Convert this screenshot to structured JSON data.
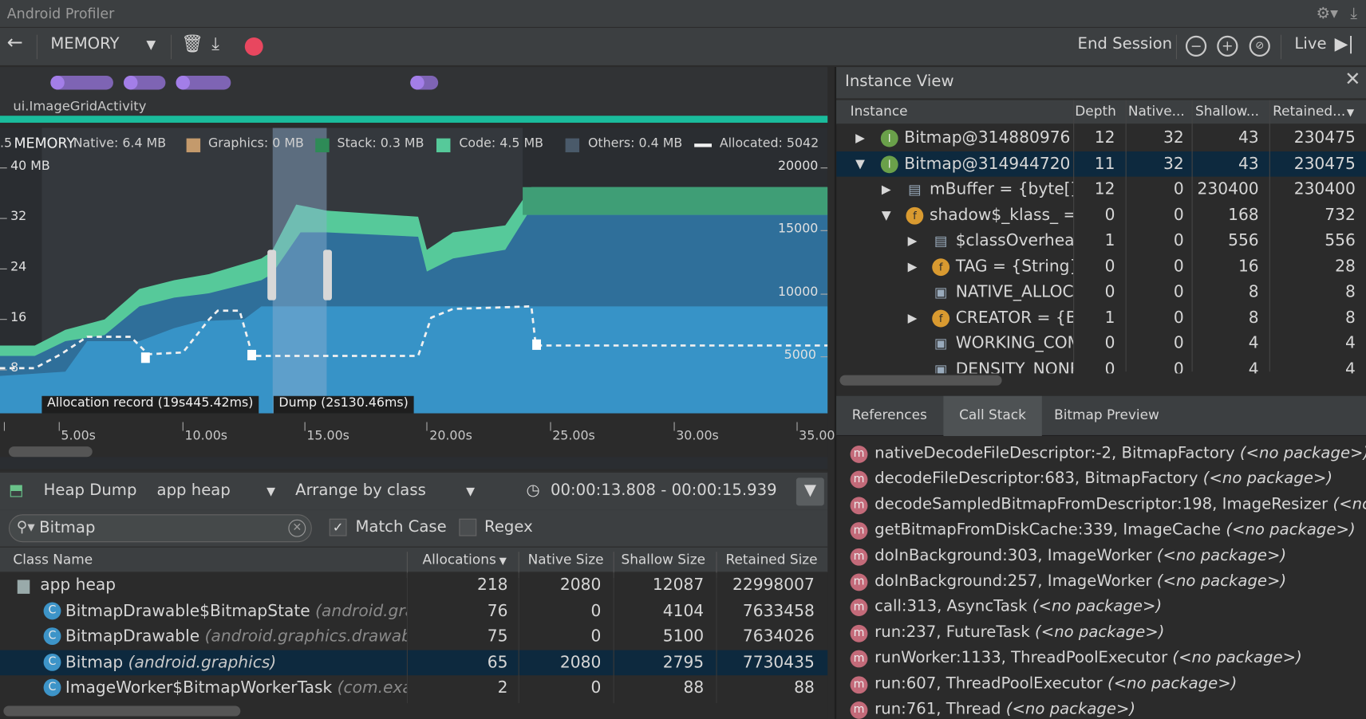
{
  "app_title": "Android Profiler",
  "toolbar": {
    "profiler_select": "MEMORY",
    "end_session": "End Session",
    "live_label": "Live"
  },
  "timeline": {
    "activity": "ui.ImageGridActivity"
  },
  "chart": {
    "overlay_label": "MEMORY",
    "legend": [
      {
        "name": "Native: 6.4 MB",
        "color": "#3a7fb0"
      },
      {
        "name": "Graphics: 0 MB",
        "color": "#c49a6c"
      },
      {
        "name": "Stack: 0.3 MB",
        "color": "#2e8b57"
      },
      {
        "name": "Code: 4.5 MB",
        "color": "#56c99a"
      },
      {
        "name": "Others: 0.4 MB",
        "color": "#4a5a6a"
      },
      {
        "name": "Allocated: 5042",
        "color": "#ffffff"
      }
    ],
    "left_axis": [
      "40 MB",
      "32",
      "24",
      "16",
      "8"
    ],
    "left_axis_partial": ".5",
    "right_axis": [
      "20000",
      "15000",
      "10000",
      "5000"
    ],
    "x_ticks": [
      "5.00s",
      "10.00s",
      "15.00s",
      "20.00s",
      "25.00s",
      "30.00s",
      "35.00"
    ],
    "allocation_record": "Allocation record (19s445.42ms)",
    "dump_label": "Dump (2s130.46ms)"
  },
  "heap": {
    "title": "Heap Dump",
    "heap_select": "app heap",
    "arrange_select": "Arrange by class",
    "time_range": "00:00:13.808 - 00:00:15.939",
    "search_value": "Bitmap",
    "match_case": "Match Case",
    "regex": "Regex",
    "columns": [
      "Class Name",
      "Allocations",
      "Native Size",
      "Shallow Size",
      "Retained Size"
    ],
    "rows": [
      {
        "name": "app heap",
        "pkg": "",
        "alloc": "218",
        "native": "2080",
        "shallow": "12087",
        "retained": "22998007"
      },
      {
        "name": "BitmapDrawable$BitmapState",
        "pkg": "(android.grap",
        "alloc": "76",
        "native": "0",
        "shallow": "4104",
        "retained": "7633458"
      },
      {
        "name": "BitmapDrawable",
        "pkg": "(android.graphics.drawable",
        "alloc": "75",
        "native": "0",
        "shallow": "5100",
        "retained": "7634026"
      },
      {
        "name": "Bitmap",
        "pkg": "(android.graphics)",
        "alloc": "65",
        "native": "2080",
        "shallow": "2795",
        "retained": "7730435"
      },
      {
        "name": "ImageWorker$BitmapWorkerTask",
        "pkg": "(com.exa",
        "alloc": "2",
        "native": "0",
        "shallow": "88",
        "retained": "88"
      }
    ]
  },
  "instance_view": {
    "title": "Instance View",
    "columns": [
      "Instance",
      "Depth",
      "Native...",
      "Shallow...",
      "Retained..."
    ],
    "rows": [
      {
        "name": "Bitmap@314880976 (",
        "depth": "12",
        "native": "32",
        "shallow": "43",
        "retained": "230475"
      },
      {
        "name": "Bitmap@314944720 (",
        "depth": "11",
        "native": "32",
        "shallow": "43",
        "retained": "230475"
      },
      {
        "name": "mBuffer = {byte[]}",
        "depth": "12",
        "native": "0",
        "shallow": "230400",
        "retained": "230400"
      },
      {
        "name": "shadow$_klass_ =",
        "depth": "0",
        "native": "0",
        "shallow": "168",
        "retained": "732"
      },
      {
        "name": "$classOverhead",
        "depth": "1",
        "native": "0",
        "shallow": "556",
        "retained": "556"
      },
      {
        "name": "TAG = {String}",
        "depth": "0",
        "native": "0",
        "shallow": "16",
        "retained": "28"
      },
      {
        "name": "NATIVE_ALLOC",
        "depth": "0",
        "native": "0",
        "shallow": "8",
        "retained": "8"
      },
      {
        "name": "CREATOR = {Bi",
        "depth": "1",
        "native": "0",
        "shallow": "8",
        "retained": "8"
      },
      {
        "name": "WORKING_COM",
        "depth": "0",
        "native": "0",
        "shallow": "4",
        "retained": "4"
      },
      {
        "name": "DENSITY_NONE",
        "depth": "0",
        "native": "0",
        "shallow": "4",
        "retained": "4"
      }
    ]
  },
  "tabs": [
    "References",
    "Call Stack",
    "Bitmap Preview"
  ],
  "call_stack": [
    {
      "frame": "nativeDecodeFileDescriptor:-2, BitmapFactory",
      "pkg": "(<no package>)"
    },
    {
      "frame": "decodeFileDescriptor:683, BitmapFactory",
      "pkg": "(<no package>)"
    },
    {
      "frame": "decodeSampledBitmapFromDescriptor:198, ImageResizer",
      "pkg": "(<no"
    },
    {
      "frame": "getBitmapFromDiskCache:339, ImageCache",
      "pkg": "(<no package>)"
    },
    {
      "frame": "doInBackground:303, ImageWorker",
      "pkg": "(<no package>)"
    },
    {
      "frame": "doInBackground:257, ImageWorker",
      "pkg": "(<no package>)"
    },
    {
      "frame": "call:313, AsyncTask",
      "pkg": "(<no package>)"
    },
    {
      "frame": "run:237, FutureTask",
      "pkg": "(<no package>)"
    },
    {
      "frame": "runWorker:1133, ThreadPoolExecutor",
      "pkg": "(<no package>)"
    },
    {
      "frame": "run:607, ThreadPoolExecutor",
      "pkg": "(<no package>)"
    },
    {
      "frame": "run:761, Thread",
      "pkg": "(<no package>)"
    }
  ]
}
